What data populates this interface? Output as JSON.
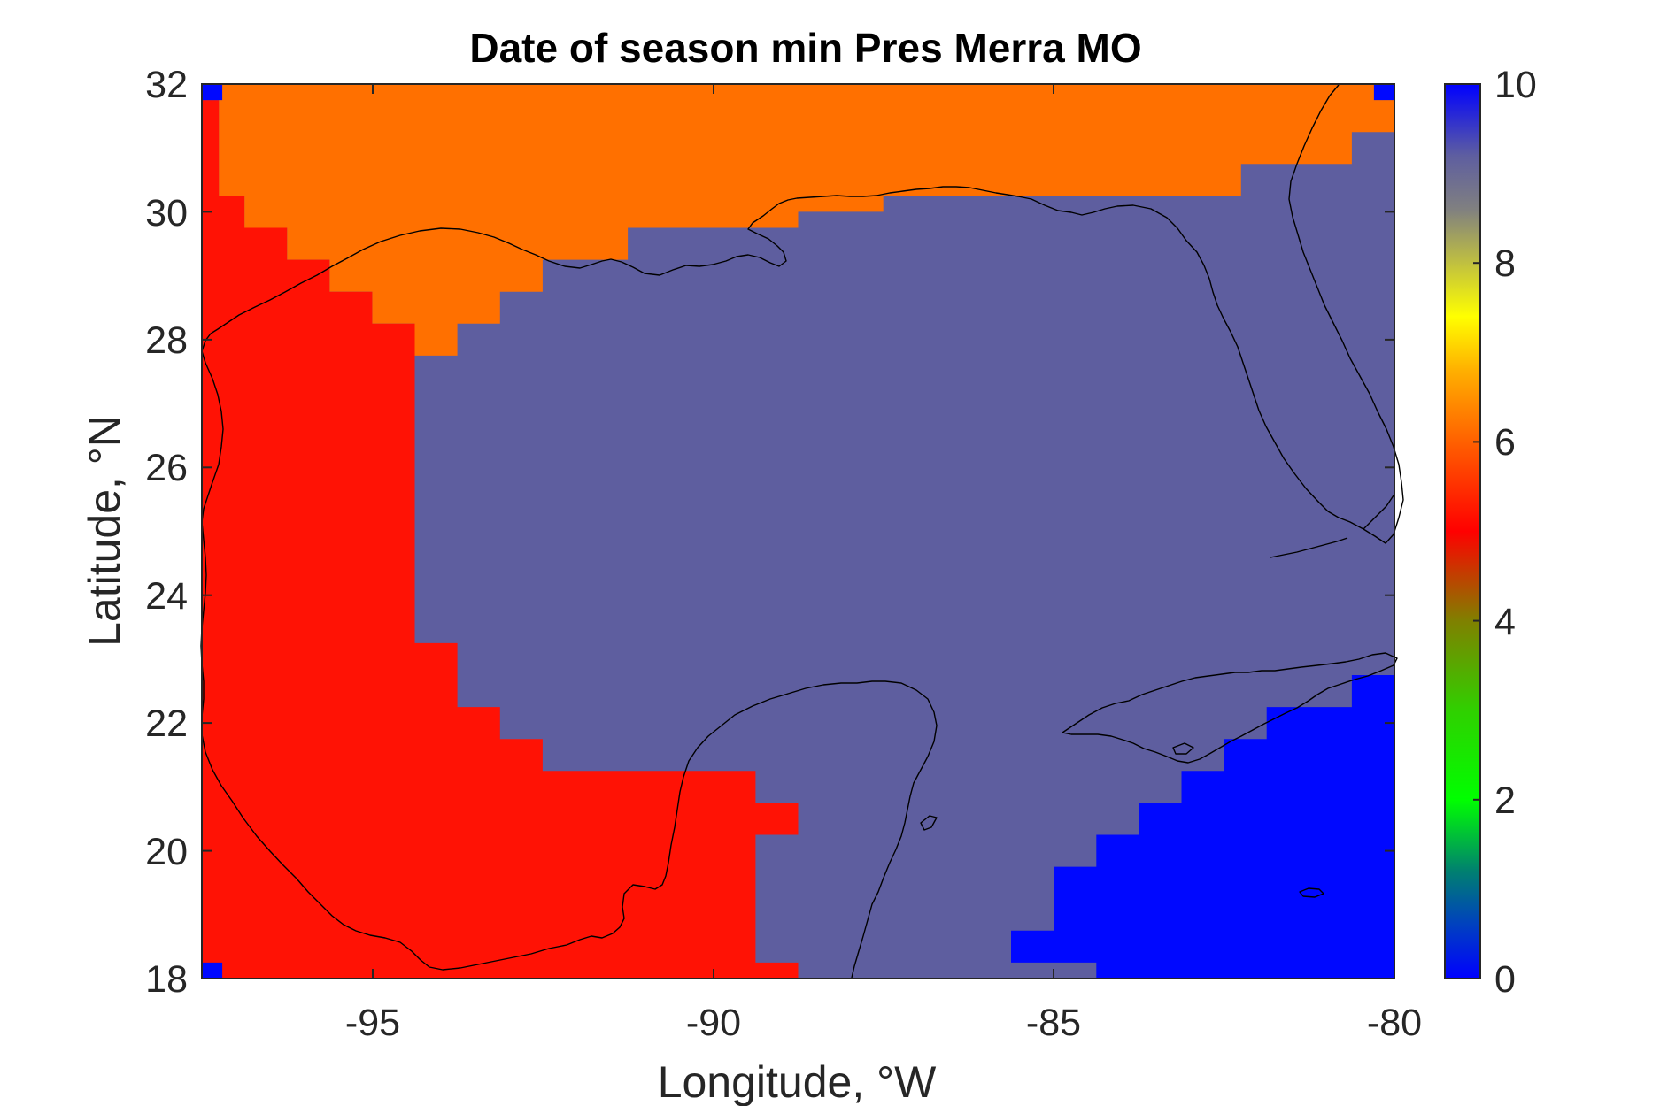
{
  "chart_data": {
    "type": "heatmap",
    "title": "Date of season min Pres Merra MO",
    "xlabel": "Longitude, °W",
    "ylabel": "Latitude, °N",
    "xlim": [
      -97.5,
      -80
    ],
    "ylim": [
      18,
      32
    ],
    "x_ticks": [
      -95,
      -90,
      -85,
      -80
    ],
    "x_tick_labels": [
      "-95",
      "-90",
      "-85",
      "-80"
    ],
    "y_ticks": [
      18,
      20,
      22,
      24,
      26,
      28,
      30,
      32
    ],
    "y_tick_labels": [
      "18",
      "20",
      "22",
      "24",
      "26",
      "28",
      "30",
      "32"
    ],
    "colorbar": {
      "range": [
        0,
        10
      ],
      "ticks": [
        0,
        2,
        4,
        6,
        8,
        10
      ],
      "tick_labels": [
        "0",
        "2",
        "4",
        "6",
        "8",
        "10"
      ]
    },
    "grid": false,
    "regions": [
      {
        "value": 6.0,
        "color": "#ff7000",
        "location": "northern Gulf coast (Texas/Louisiana inland strip and north Florida)"
      },
      {
        "value": 5.2,
        "color": "#ff1205",
        "location": "western Gulf, Texas coast and Mexico"
      },
      {
        "value": 9.0,
        "color": "#5e5e9f",
        "location": "central and eastern Gulf, Florida"
      },
      {
        "value": 10.0,
        "color": "#0008ff",
        "location": "Caribbean southeast of Cuba and grid corners"
      }
    ],
    "colors": {
      "orange": "#ff7000",
      "red": "#ff1205",
      "slate": "#5e5e9f",
      "blue": "#0008ff",
      "coast": "#000000"
    }
  }
}
